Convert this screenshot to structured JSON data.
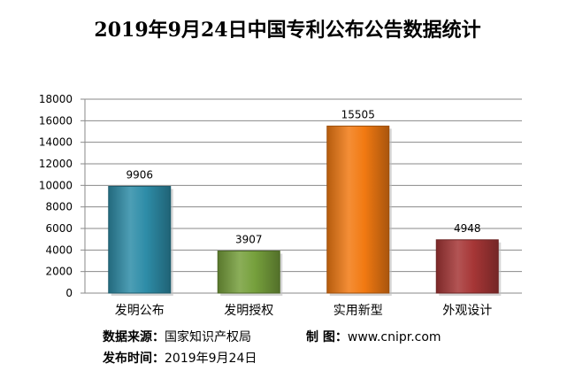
{
  "title": "2019年9月24日中国专利公布公告数据统计",
  "chart_data": {
    "type": "bar",
    "categories": [
      "发明公布",
      "发明授权",
      "实用新型",
      "外观设计"
    ],
    "values": [
      9906,
      3907,
      15505,
      4948
    ],
    "data_labels": [
      "9906",
      "3907",
      "15505",
      "4948"
    ],
    "ylim": [
      0,
      18000
    ],
    "yticks": [
      0,
      2000,
      4000,
      6000,
      8000,
      10000,
      12000,
      14000,
      16000,
      18000
    ],
    "grid": true,
    "legend": "none",
    "colors": [
      "#2E8DA8",
      "#76A03C",
      "#F27A12",
      "#A63636"
    ]
  },
  "footer": {
    "source_label": "数据来源：",
    "source_value": "国家知识产权局",
    "maker_label": "制  图：",
    "maker_value": "www.cnipr.com",
    "date_label": "发布时间：",
    "date_value": "2019年9月24日"
  }
}
